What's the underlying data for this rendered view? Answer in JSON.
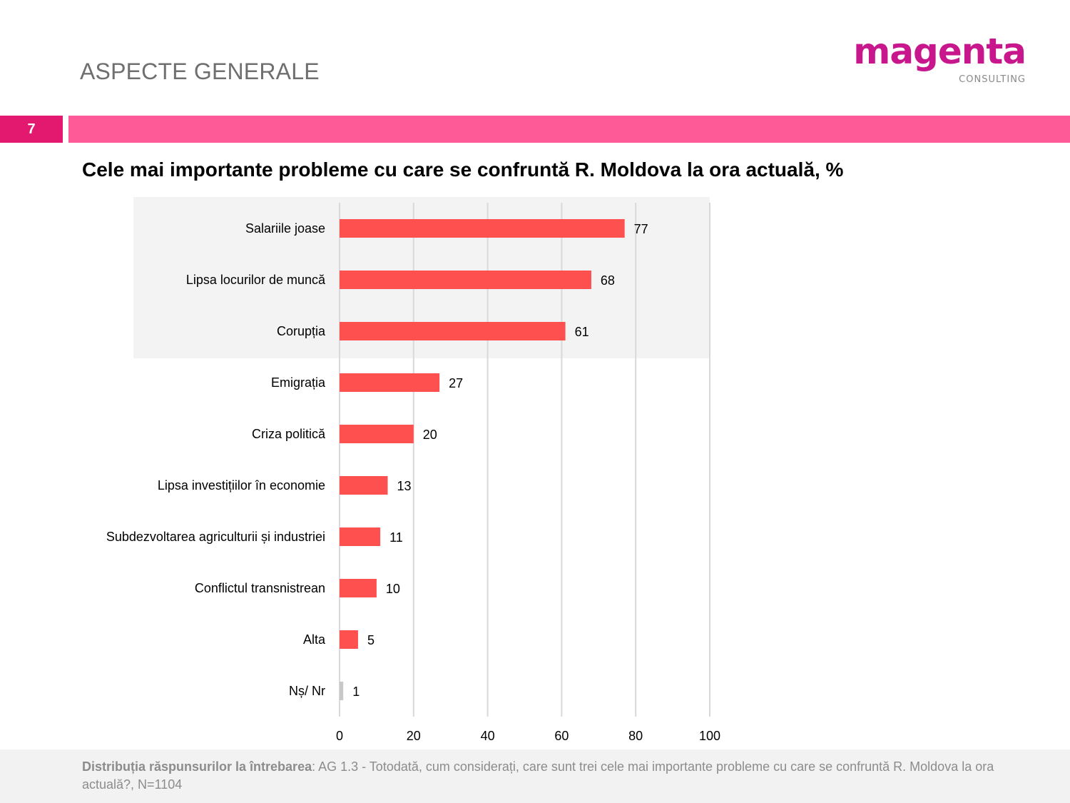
{
  "header": {
    "section_title": "ASPECTE GENERALE",
    "logo_main": "magenta",
    "logo_sub": "CONSULTING",
    "page_number": "7"
  },
  "colors": {
    "bar": "#ff5050",
    "bar_other": "#c8c8c8",
    "highlight": "#f3f3f3",
    "gridline": "#d9d9d9",
    "accent": "#e3186f",
    "band": "#ff5a98"
  },
  "chart_data": {
    "type": "bar",
    "orientation": "horizontal",
    "title": "Cele mai importante probleme cu care se confruntă R. Moldova la ora actuală, %",
    "categories": [
      "Salariile joase",
      "Lipsa locurilor de muncă",
      "Corupția",
      "Emigrația",
      "Criza politică",
      "Lipsa investițiilor în economie",
      "Subdezvoltarea agriculturii și industriei",
      "Conflictul transnistrean",
      "Alta",
      "Nș/ Nr"
    ],
    "values": [
      77,
      68,
      61,
      27,
      20,
      13,
      11,
      10,
      5,
      1
    ],
    "value_labels": [
      "77",
      "68",
      "61",
      "27",
      "20",
      "13",
      "11",
      "10",
      "5",
      "1"
    ],
    "highlighted_top": 3,
    "xlim": [
      0,
      100
    ],
    "xticks": [
      "0",
      "20",
      "40",
      "60",
      "80",
      "100"
    ],
    "tick_values": [
      0,
      20,
      40,
      60,
      80,
      100
    ],
    "grid": true,
    "legend": "none"
  },
  "footer": {
    "label": "Distribuția răspunsurilor la întrebarea",
    "text": ": AG 1.3 - Totodată, cum considerați, care sunt trei cele mai importante probleme cu care se confruntă R. Moldova la ora actuală?, N=1104"
  }
}
